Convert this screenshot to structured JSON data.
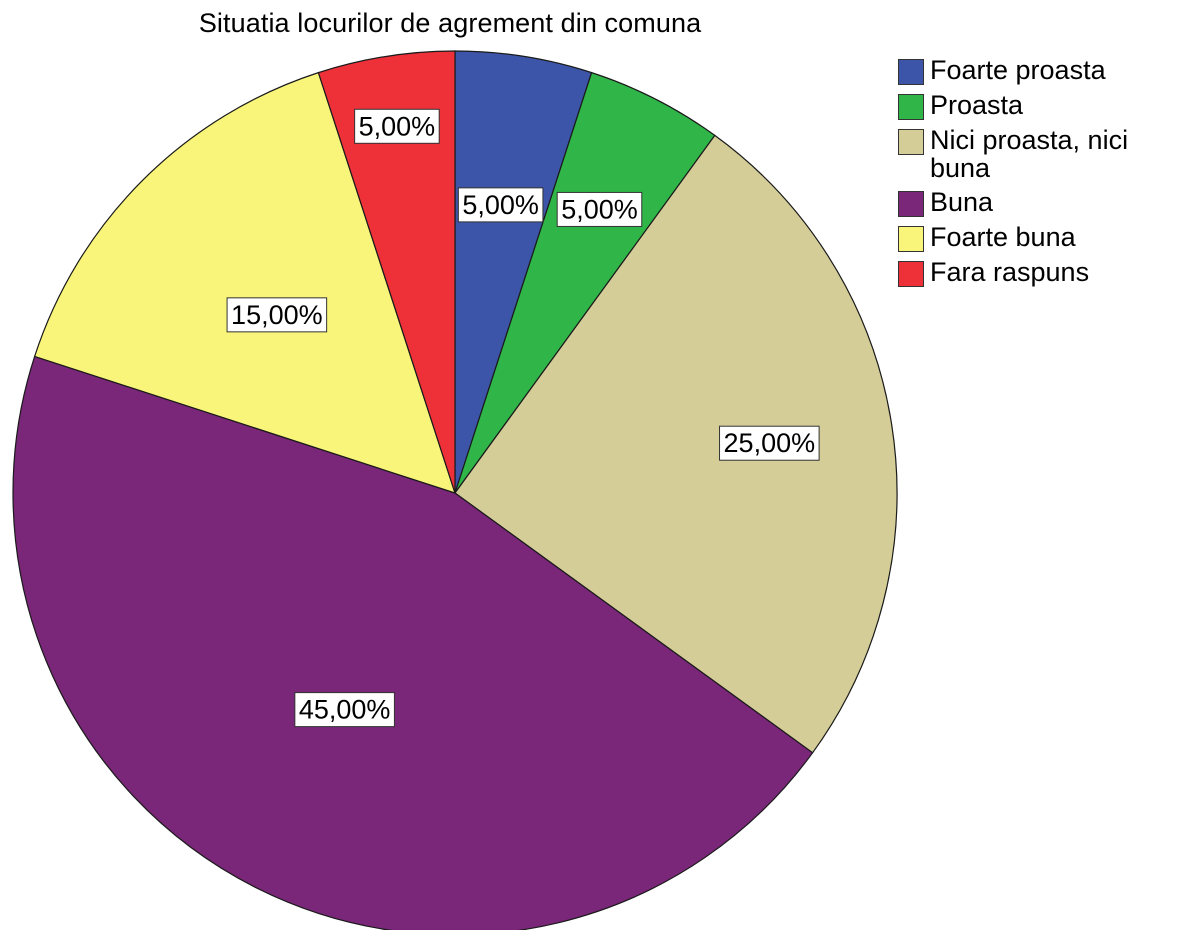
{
  "chart_data": {
    "type": "pie",
    "title": "Situatia locurilor de agrement din comuna",
    "categories": [
      "Foarte proasta",
      "Proasta",
      "Nici proasta, nici buna",
      "Buna",
      "Foarte buna",
      "Fara raspuns"
    ],
    "values": [
      5,
      5,
      25,
      45,
      15,
      5
    ],
    "labels": [
      "5,00%",
      "5,00%",
      "25,00%",
      "45,00%",
      "15,00%",
      "5,00%"
    ],
    "colors": [
      "#3d55a8",
      "#2fb548",
      "#d4cd98",
      "#7a2679",
      "#f9f57a",
      "#ee3039"
    ],
    "legend_position": "right"
  }
}
